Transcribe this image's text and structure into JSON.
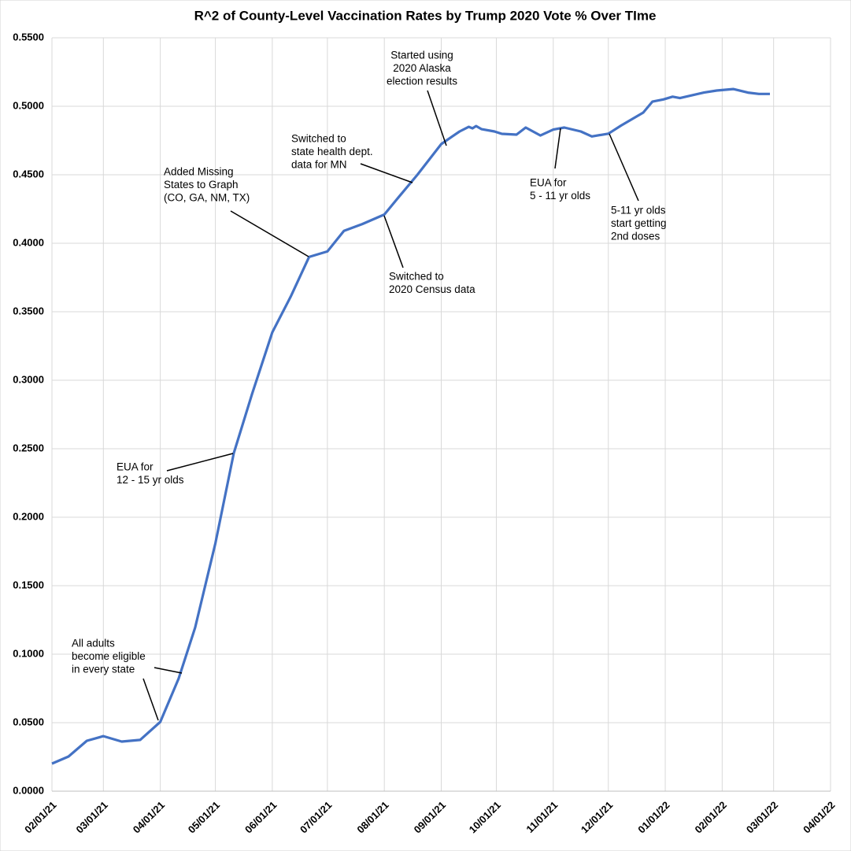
{
  "chart_data": {
    "type": "line",
    "title": "R^2 of County-Level Vaccination Rates by Trump 2020 Vote % Over TIme",
    "x": [
      "02/01/21",
      "02/10/21",
      "02/20/21",
      "03/01/21",
      "03/11/21",
      "03/21/21",
      "04/01/21",
      "04/11/21",
      "04/20/21",
      "05/01/21",
      "05/11/21",
      "05/21/21",
      "06/01/21",
      "06/11/21",
      "06/21/21",
      "07/01/21",
      "07/10/21",
      "07/20/21",
      "08/01/21",
      "08/09/21",
      "08/19/21",
      "09/01/21",
      "09/07/21",
      "09/11/21",
      "09/16/21",
      "09/18/21",
      "09/20/21",
      "09/23/21",
      "09/30/21",
      "10/04/21",
      "10/12/21",
      "10/17/21",
      "10/25/21",
      "11/01/21",
      "11/07/21",
      "11/16/21",
      "11/22/21",
      "12/01/21",
      "12/08/21",
      "12/20/21",
      "12/25/21",
      "12/31/21",
      "01/05/22",
      "01/09/22",
      "01/22/22",
      "01/29/22",
      "02/07/22",
      "02/15/22",
      "02/21/22",
      "02/27/22"
    ],
    "series": [
      {
        "name": "R^2",
        "color": "#4472c4",
        "values": [
          0.0201,
          0.0253,
          0.0368,
          0.0402,
          0.0362,
          0.0374,
          0.0506,
          0.0822,
          0.1195,
          0.181,
          0.2466,
          0.29,
          0.335,
          0.361,
          0.39,
          0.394,
          0.409,
          0.414,
          0.421,
          0.434,
          0.45,
          0.4724,
          0.478,
          0.4816,
          0.485,
          0.4839,
          0.4856,
          0.4833,
          0.4816,
          0.4799,
          0.4793,
          0.4845,
          0.4787,
          0.483,
          0.4845,
          0.4816,
          0.478,
          0.48,
          0.486,
          0.4954,
          0.5034,
          0.505,
          0.507,
          0.506,
          0.51,
          0.5115,
          0.5126,
          0.51,
          0.509,
          0.509
        ]
      }
    ],
    "xlim": [
      "02/01/21",
      "04/01/22"
    ],
    "xticks": [
      "02/01/21",
      "03/01/21",
      "04/01/21",
      "05/01/21",
      "06/01/21",
      "07/01/21",
      "08/01/21",
      "09/01/21",
      "10/01/21",
      "11/01/21",
      "12/01/21",
      "01/01/22",
      "02/01/22",
      "03/01/22",
      "04/01/22"
    ],
    "ylim": [
      0,
      0.55
    ],
    "yticks": [
      {
        "value": 0,
        "label": "0.0000"
      },
      {
        "value": 0.05,
        "label": "0.0500"
      },
      {
        "value": 0.1,
        "label": "0.1000"
      },
      {
        "value": 0.15,
        "label": "0.1500"
      },
      {
        "value": 0.2,
        "label": "0.2000"
      },
      {
        "value": 0.25,
        "label": "0.2500"
      },
      {
        "value": 0.3,
        "label": "0.3000"
      },
      {
        "value": 0.35,
        "label": "0.3500"
      },
      {
        "value": 0.4,
        "label": "0.4000"
      },
      {
        "value": 0.45,
        "label": "0.4500"
      },
      {
        "value": 0.5,
        "label": "0.5000"
      },
      {
        "value": 0.55,
        "label": "0.5500"
      }
    ],
    "grid": true,
    "annotations": [
      [
        "All adults",
        "become eligible",
        "in every state"
      ],
      [
        "EUA for",
        "12 - 15 yr olds"
      ],
      [
        "Added Missing",
        "States to Graph",
        "(CO, GA, NM, TX)"
      ],
      [
        "Switched to",
        "state health dept.",
        "data for MN"
      ],
      [
        "Started using",
        "2020 Alaska",
        "election results"
      ],
      [
        "Switched to",
        "2020 Census data"
      ],
      [
        "EUA for",
        "5 - 11 yr olds"
      ],
      [
        "5-11 yr olds",
        "start getting",
        "2nd doses"
      ]
    ]
  }
}
